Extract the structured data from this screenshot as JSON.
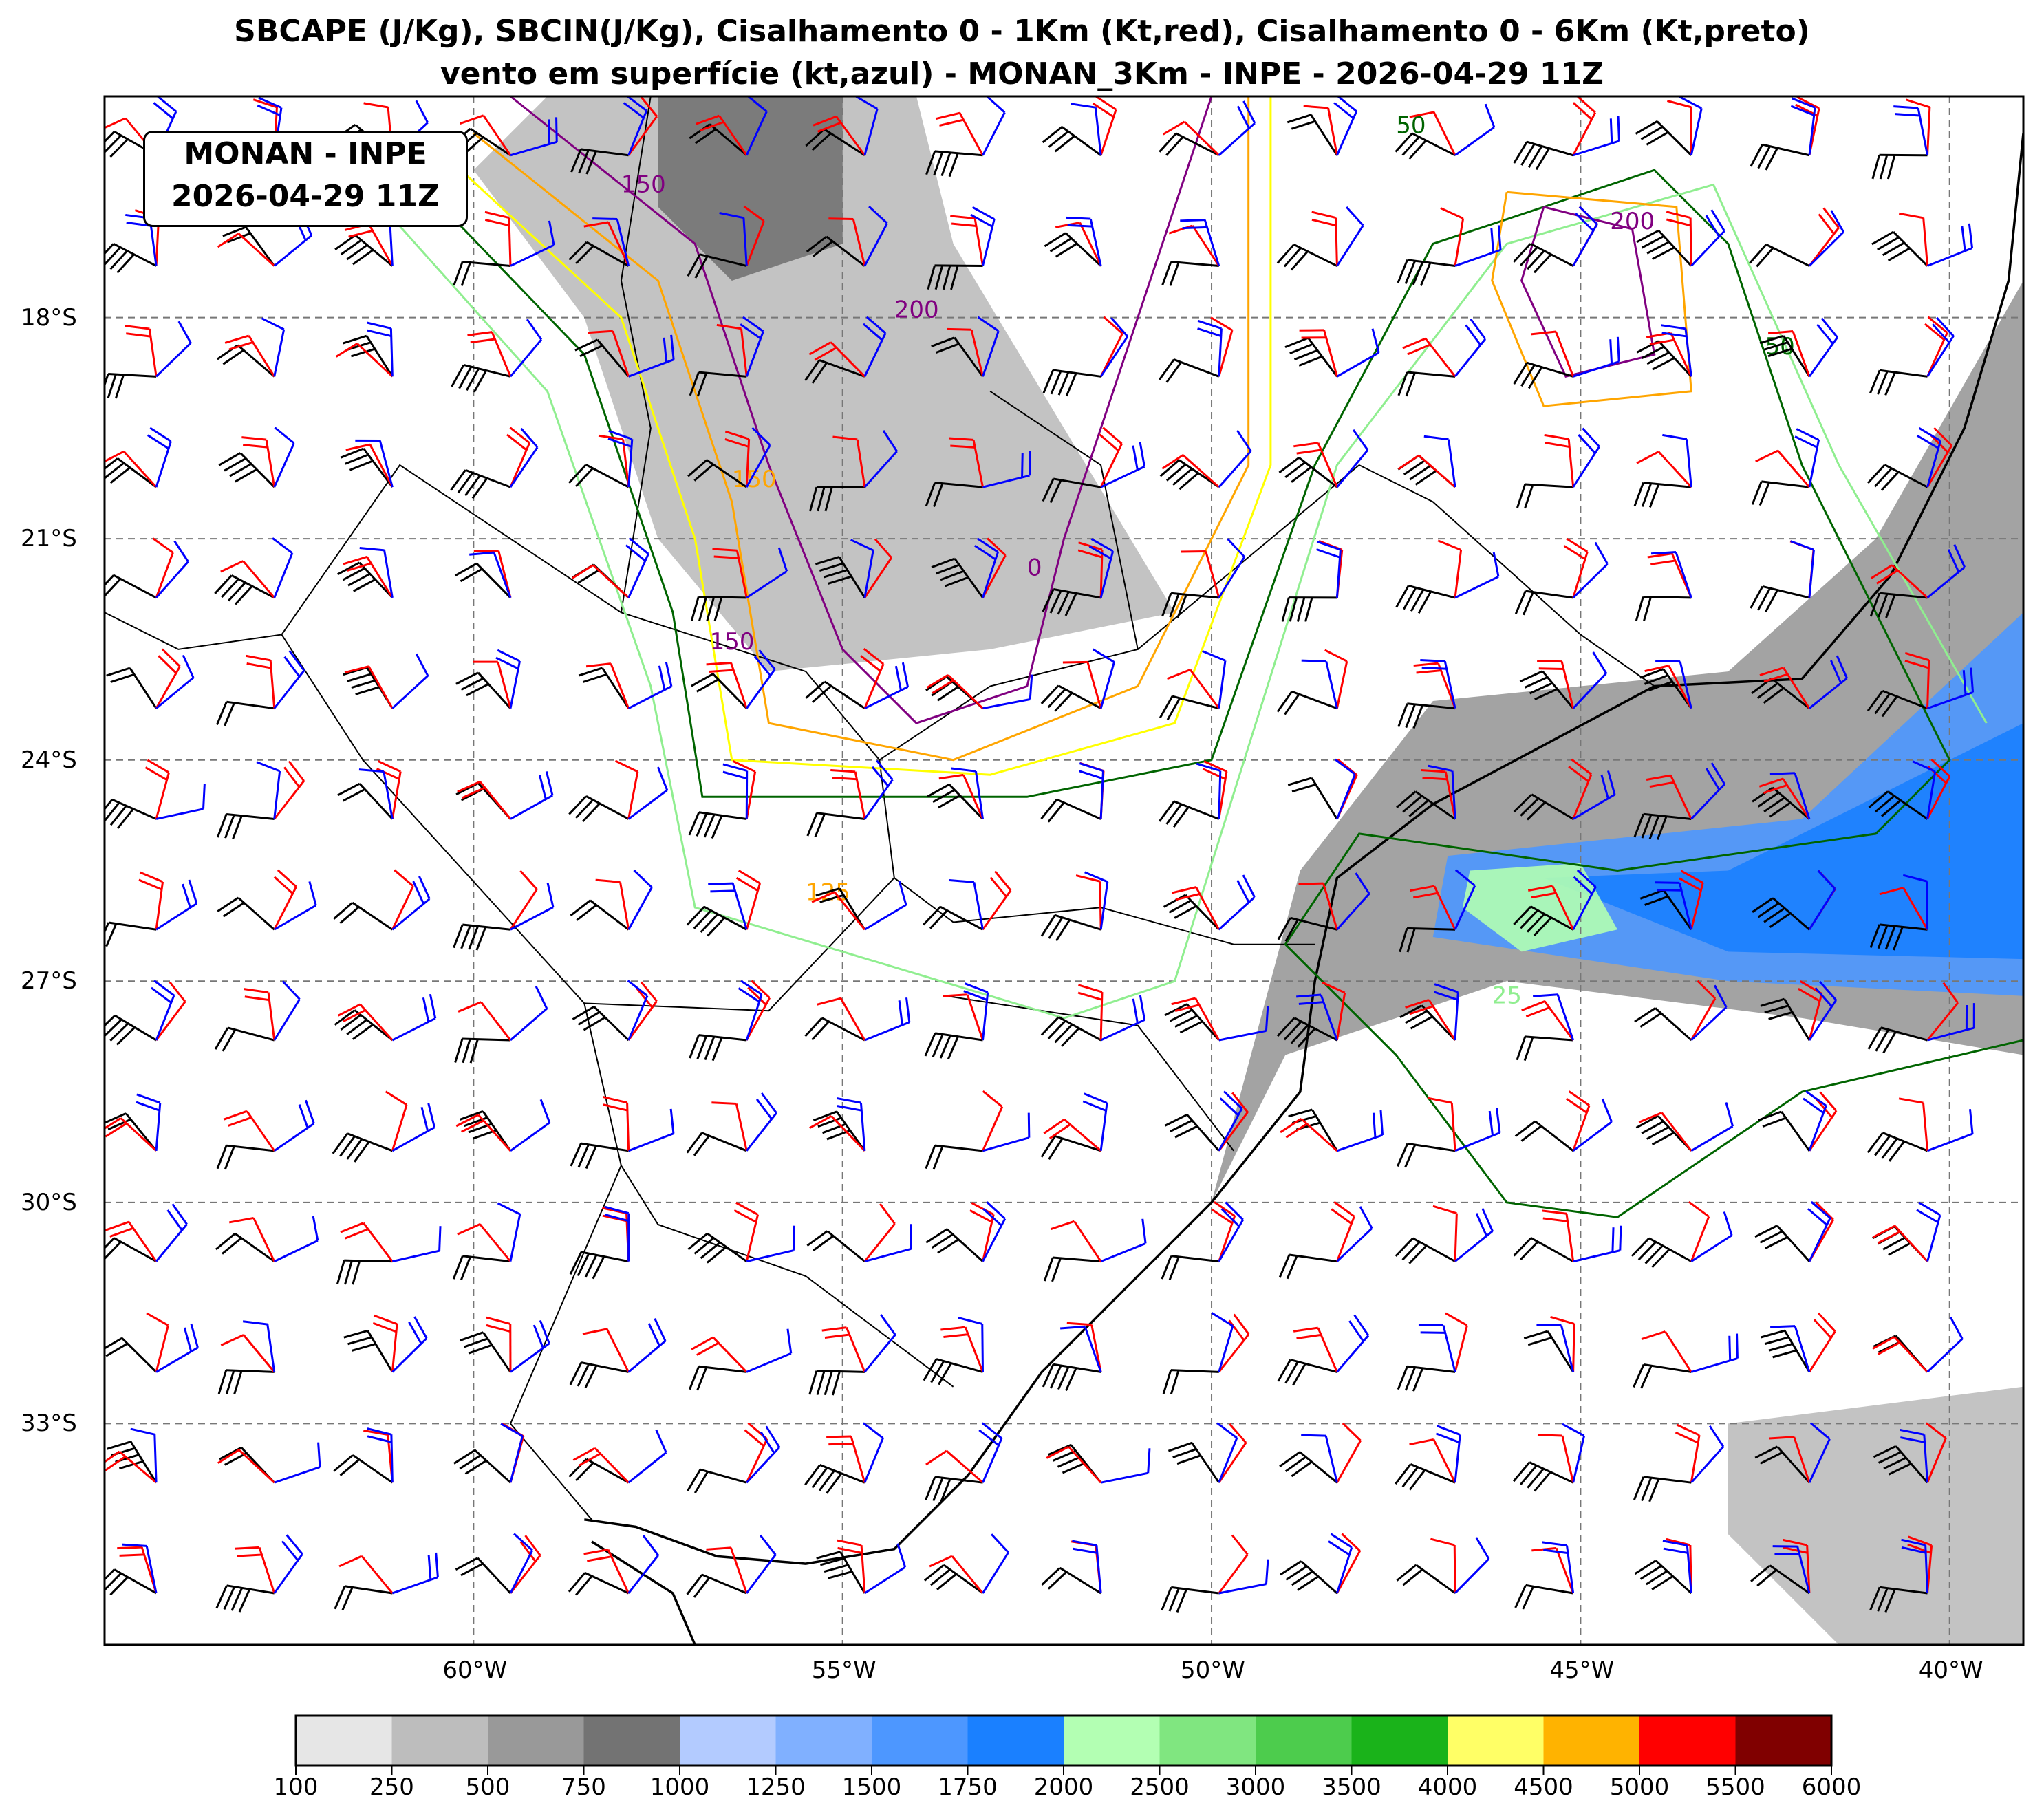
{
  "title": {
    "line1": "SBCAPE (J/Kg), SBCIN(J/Kg), Cisalhamento 0 - 1Km (Kt,red), Cisalhamento 0 - 6Km (Kt,preto)",
    "line2": "vento em superfície (kt,azul) - MONAN_3Km - INPE - 2026-04-29 11Z"
  },
  "infobox": {
    "line1": "MONAN - INPE",
    "line2": "2026-04-29 11Z"
  },
  "map": {
    "extent": {
      "lon": [
        -65,
        -39
      ],
      "lat": [
        -36,
        -15
      ]
    },
    "lon_ticks": [
      {
        "value": -60,
        "label": "60°W"
      },
      {
        "value": -55,
        "label": "55°W"
      },
      {
        "value": -50,
        "label": "50°W"
      },
      {
        "value": -45,
        "label": "45°W"
      },
      {
        "value": -40,
        "label": "40°W"
      }
    ],
    "lat_ticks": [
      {
        "value": -18,
        "label": "18°S"
      },
      {
        "value": -21,
        "label": "21°S"
      },
      {
        "value": -24,
        "label": "24°S"
      },
      {
        "value": -27,
        "label": "27°S"
      },
      {
        "value": -30,
        "label": "30°S"
      },
      {
        "value": -33,
        "label": "33°S"
      }
    ],
    "contour_labels": [
      "150",
      "100",
      "200",
      "125",
      "50",
      "25",
      "0"
    ],
    "series_colors": {
      "shear_0_1km": "#ff0000",
      "shear_0_6km": "#000000",
      "surface_wind": "#0000ff"
    }
  },
  "colorbar": {
    "levels": [
      "100",
      "250",
      "500",
      "750",
      "1000",
      "1250",
      "1500",
      "1750",
      "2000",
      "2500",
      "3000",
      "3500",
      "4000",
      "4500",
      "5000",
      "5500",
      "6000"
    ],
    "colors": [
      "#e6e6e6",
      "#bdbdbd",
      "#999999",
      "#737373",
      "#b3cbff",
      "#80b0ff",
      "#4d97ff",
      "#1a80ff",
      "#b3ffb3",
      "#80e680",
      "#4dcc4d",
      "#1ab31a",
      "#ffff66",
      "#ffb300",
      "#ff0000",
      "#800000"
    ]
  }
}
